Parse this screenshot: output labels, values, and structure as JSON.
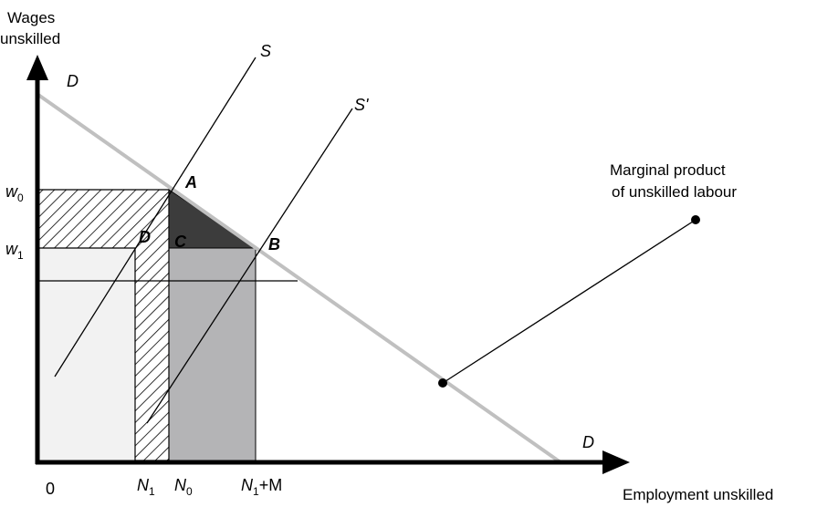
{
  "axes": {
    "y_title_line1": "Wages",
    "y_title_line2": "unskilled",
    "x_title": "Employment unskilled",
    "origin": "0"
  },
  "y_ticks": [
    {
      "base": "w",
      "sub": "0"
    },
    {
      "base": "w",
      "sub": "1"
    }
  ],
  "x_ticks": [
    {
      "base": "N",
      "sub": "1",
      "suffix": ""
    },
    {
      "base": "N",
      "sub": "0",
      "suffix": ""
    },
    {
      "base": "N",
      "sub": "1",
      "suffix": "+M"
    }
  ],
  "curves": {
    "demand_top": "D",
    "demand_bottom": "D",
    "supply": "S",
    "supply_shifted": "S'"
  },
  "points": {
    "a": "A",
    "b": "B",
    "c": "C",
    "d": "D"
  },
  "annotation": {
    "line1": "Marginal product",
    "line2": "of unskilled labour"
  },
  "colors": {
    "demand_line": "#c0c0c0",
    "dark_triangle": "#3c3c3c",
    "grey_area": "#b4b4b6",
    "light_area": "#f2f2f2",
    "hatch": "#000000"
  }
}
